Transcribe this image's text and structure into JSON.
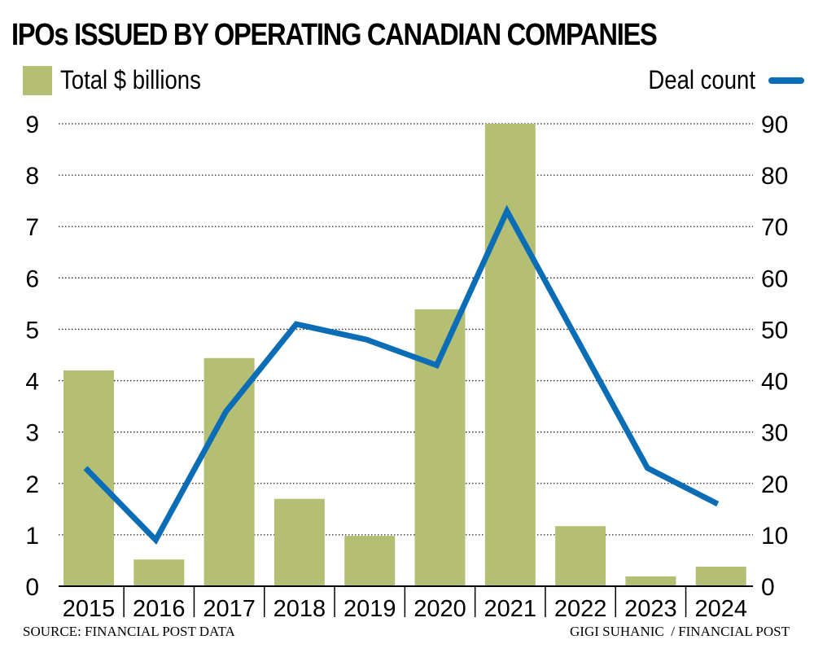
{
  "chart_data": {
    "type": "bar+line",
    "title": "IPOs ISSUED BY OPERATING CANADIAN COMPANIES",
    "categories": [
      "2015",
      "2016",
      "2017",
      "2018",
      "2019",
      "2020",
      "2021",
      "2022",
      "2023",
      "2024"
    ],
    "series": [
      {
        "name": "Total $ billions",
        "type": "bar",
        "axis": "left",
        "color": "#b5bf74",
        "values": [
          4.2,
          0.52,
          4.44,
          1.7,
          0.98,
          5.39,
          9.0,
          1.17,
          0.19,
          0.38
        ]
      },
      {
        "name": "Deal count",
        "type": "line",
        "axis": "right",
        "color": "#0a6db5",
        "values": [
          23,
          9,
          34,
          51,
          48,
          43,
          73,
          48,
          23,
          16
        ]
      }
    ],
    "ylim_left": [
      0,
      9
    ],
    "yticks_left": [
      "0",
      "1",
      "2",
      "3",
      "4",
      "5",
      "6",
      "7",
      "8",
      "9"
    ],
    "ylim_right": [
      0,
      90
    ],
    "yticks_right": [
      "0",
      "10",
      "20",
      "30",
      "40",
      "50",
      "60",
      "70",
      "80",
      "90"
    ],
    "grid": "dotted horizontal",
    "legend": "top"
  },
  "footer": {
    "source": "SOURCE: FINANCIAL POST DATA",
    "credit": "GIGI SUHANIC  / FINANCIAL POST"
  }
}
